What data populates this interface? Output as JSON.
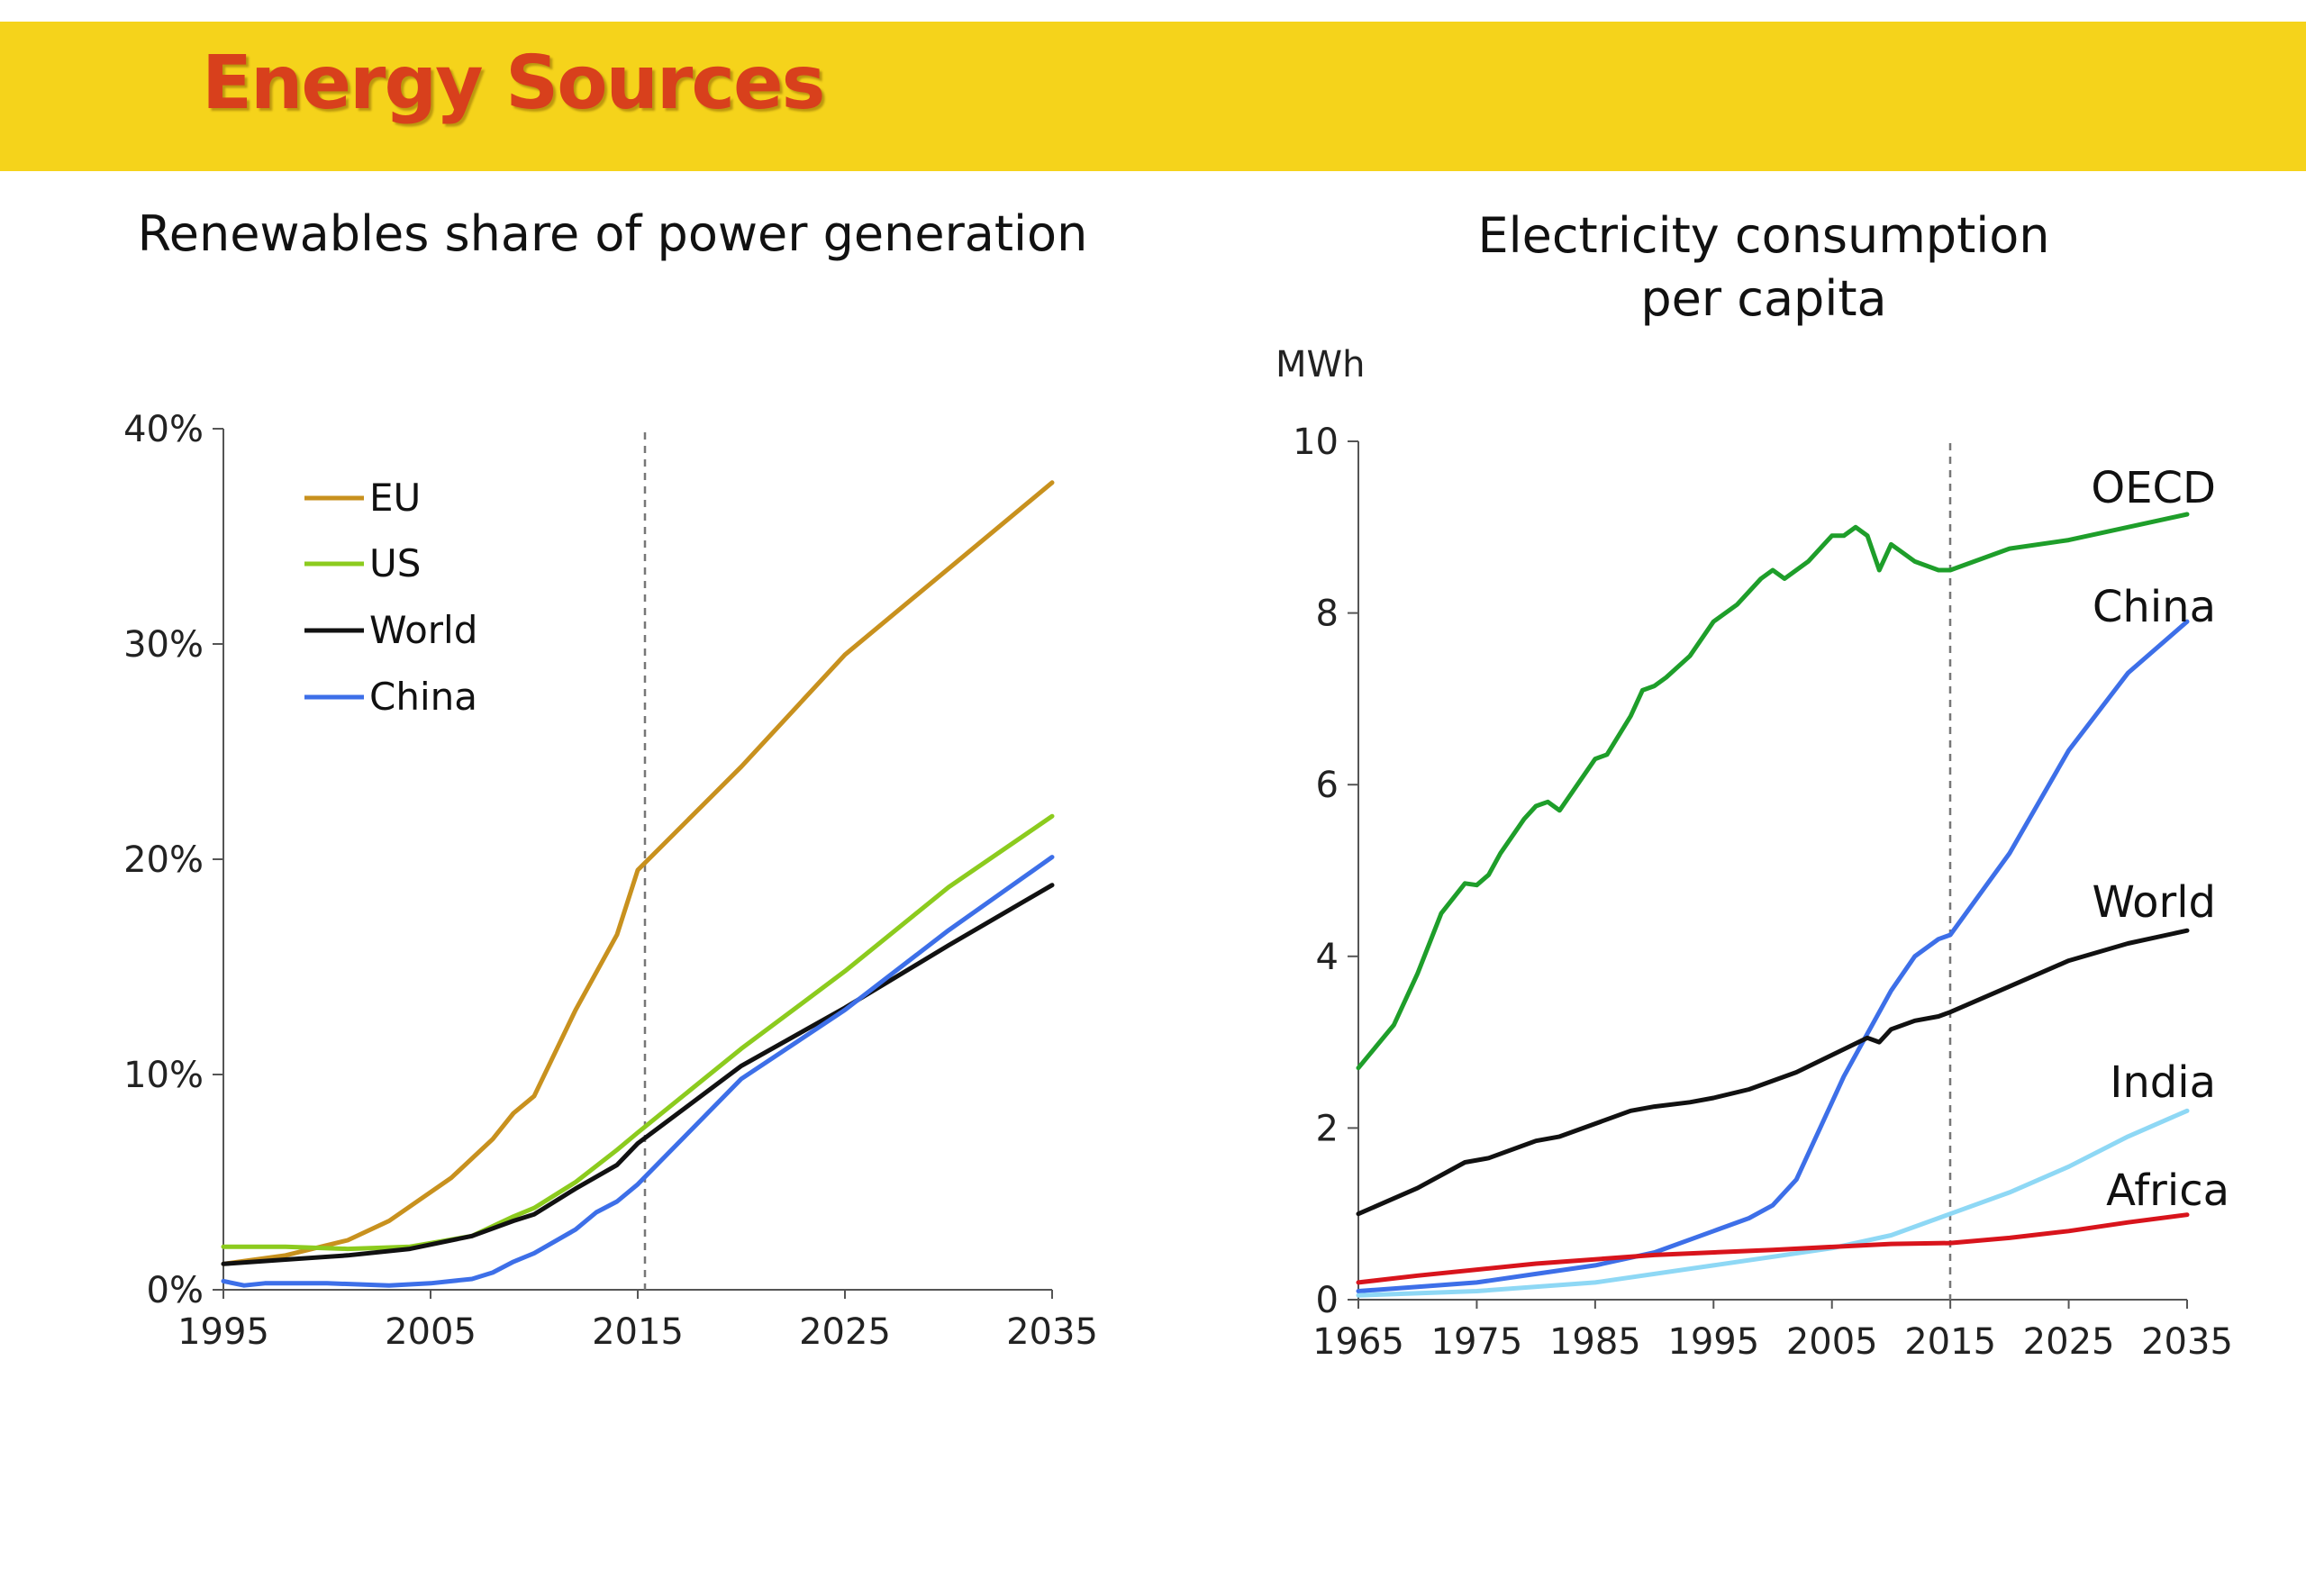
{
  "slide": {
    "title": "Energy Sources"
  },
  "colors": {
    "banner": "#F5D31B",
    "title": "#D8401C",
    "EU": "#C8911E",
    "US": "#8CCB1E",
    "World": "#111111",
    "China": "#3D6FE8",
    "OECD": "#1E9E2A",
    "India": "#8ED8F5",
    "Africa": "#D8141C"
  },
  "chart_data": [
    {
      "type": "line",
      "title": "Renewables share of power generation",
      "unit": "%",
      "xlim": [
        1995,
        2035
      ],
      "ylim": [
        0,
        40
      ],
      "xticks": [
        "1995",
        "2005",
        "2015",
        "2025",
        "2035"
      ],
      "yticks": [
        "0%",
        "10%",
        "20%",
        "30%",
        "40%"
      ],
      "reference_line_x": 2015,
      "legend": "top-left",
      "series": [
        {
          "name": "EU",
          "x": [
            1995,
            1998,
            2001,
            2003,
            2006,
            2008,
            2009,
            2010,
            2012,
            2014,
            2015,
            2020,
            2025,
            2030,
            2035
          ],
          "y": [
            1.2,
            1.6,
            2.3,
            3.2,
            5.2,
            7.0,
            8.2,
            9.0,
            13.0,
            16.5,
            19.5,
            24.3,
            29.5,
            33.5,
            37.5
          ]
        },
        {
          "name": "US",
          "x": [
            1995,
            1998,
            2001,
            2004,
            2007,
            2009,
            2010,
            2012,
            2014,
            2015,
            2020,
            2025,
            2030,
            2035
          ],
          "y": [
            2.0,
            2.0,
            1.9,
            2.0,
            2.5,
            3.4,
            3.8,
            5.0,
            6.5,
            7.3,
            11.2,
            14.8,
            18.7,
            22.0
          ]
        },
        {
          "name": "World",
          "x": [
            1995,
            1998,
            2001,
            2004,
            2007,
            2009,
            2010,
            2012,
            2014,
            2015,
            2020,
            2025,
            2030,
            2035
          ],
          "y": [
            1.2,
            1.4,
            1.6,
            1.9,
            2.5,
            3.2,
            3.5,
            4.7,
            5.8,
            6.8,
            10.4,
            13.1,
            16.0,
            18.8
          ]
        },
        {
          "name": "China",
          "x": [
            1995,
            1996,
            1997,
            2000,
            2003,
            2005,
            2007,
            2008,
            2009,
            2010,
            2012,
            2013,
            2014,
            2015,
            2020,
            2025,
            2030,
            2035
          ],
          "y": [
            0.4,
            0.2,
            0.3,
            0.3,
            0.2,
            0.3,
            0.5,
            0.8,
            1.3,
            1.7,
            2.8,
            3.6,
            4.1,
            4.9,
            9.8,
            13.0,
            16.7,
            20.1
          ]
        }
      ]
    },
    {
      "type": "line",
      "title": "Electricity consumption per capita",
      "ylabel": "MWh",
      "xlim": [
        1965,
        2035
      ],
      "ylim": [
        0,
        10
      ],
      "xticks": [
        "1965",
        "1975",
        "1985",
        "1995",
        "2005",
        "2015",
        "2025",
        "2035"
      ],
      "yticks": [
        "0",
        "2",
        "4",
        "6",
        "8",
        "10"
      ],
      "reference_line_x": 2015,
      "series": [
        {
          "name": "OECD",
          "x": [
            1965,
            1968,
            1970,
            1972,
            1974,
            1975,
            1976,
            1977,
            1979,
            1980,
            1981,
            1982,
            1983,
            1985,
            1986,
            1988,
            1989,
            1990,
            1991,
            1993,
            1995,
            1997,
            1999,
            2000,
            2001,
            2003,
            2005,
            2006,
            2007,
            2008,
            2009,
            2010,
            2011,
            2012,
            2014,
            2015,
            2020,
            2025,
            2030,
            2035
          ],
          "y": [
            2.7,
            3.2,
            3.8,
            4.5,
            4.85,
            4.83,
            4.95,
            5.2,
            5.6,
            5.75,
            5.8,
            5.7,
            5.9,
            6.3,
            6.35,
            6.8,
            7.1,
            7.15,
            7.25,
            7.5,
            7.9,
            8.1,
            8.4,
            8.5,
            8.4,
            8.6,
            8.9,
            8.9,
            9.0,
            8.9,
            8.5,
            8.8,
            8.7,
            8.6,
            8.5,
            8.5,
            8.75,
            8.85,
            9.0,
            9.15
          ]
        },
        {
          "name": "China",
          "x": [
            1965,
            1970,
            1975,
            1980,
            1985,
            1990,
            1995,
            1998,
            2000,
            2002,
            2004,
            2006,
            2008,
            2010,
            2012,
            2014,
            2015,
            2020,
            2025,
            2030,
            2035
          ],
          "y": [
            0.1,
            0.15,
            0.2,
            0.3,
            0.4,
            0.55,
            0.8,
            0.95,
            1.1,
            1.4,
            2.0,
            2.6,
            3.1,
            3.6,
            4.0,
            4.2,
            4.25,
            5.2,
            6.4,
            7.3,
            7.9
          ]
        },
        {
          "name": "World",
          "x": [
            1965,
            1970,
            1974,
            1976,
            1980,
            1982,
            1985,
            1988,
            1990,
            1993,
            1995,
            1998,
            2000,
            2002,
            2005,
            2008,
            2009,
            2010,
            2012,
            2014,
            2015,
            2020,
            2025,
            2030,
            2035
          ],
          "y": [
            1.0,
            1.3,
            1.6,
            1.65,
            1.85,
            1.9,
            2.05,
            2.2,
            2.25,
            2.3,
            2.35,
            2.45,
            2.55,
            2.65,
            2.85,
            3.05,
            3.0,
            3.15,
            3.25,
            3.3,
            3.35,
            3.65,
            3.95,
            4.15,
            4.3
          ]
        },
        {
          "name": "India",
          "x": [
            1965,
            1975,
            1985,
            1995,
            2005,
            2010,
            2015,
            2020,
            2025,
            2030,
            2035
          ],
          "y": [
            0.05,
            0.1,
            0.2,
            0.4,
            0.6,
            0.75,
            1.0,
            1.25,
            1.55,
            1.9,
            2.2
          ]
        },
        {
          "name": "Africa",
          "x": [
            1965,
            1970,
            1980,
            1990,
            2000,
            2010,
            2015,
            2020,
            2025,
            2030,
            2035
          ],
          "y": [
            0.2,
            0.28,
            0.42,
            0.52,
            0.58,
            0.65,
            0.66,
            0.72,
            0.8,
            0.9,
            0.99
          ]
        }
      ]
    }
  ]
}
